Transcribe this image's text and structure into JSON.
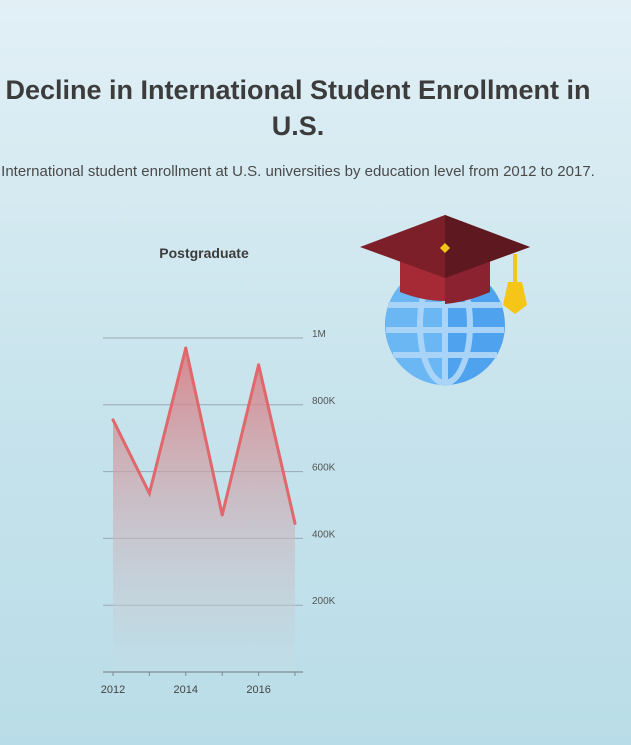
{
  "title": "Decline in International Student Enrollment in U.S.",
  "subtitle": "International student enrollment at U.S. universities by education level from 2012 to 2017.",
  "colors": {
    "line": "#e0676b",
    "fill_top": "#d9777c",
    "fill_bottom": "#c3dde6",
    "grid": "#9aa9b0",
    "cap": "#7d1f28",
    "cap_band": "#a52a36",
    "tassel": "#f5c518",
    "globe": "#5aaaf0"
  },
  "icons": [
    "graduation-cap-icon",
    "globe-icon"
  ],
  "chart_data": {
    "type": "area",
    "title": "Postgraduate",
    "x": [
      2012,
      2013,
      2014,
      2015,
      2016,
      2017
    ],
    "x_tick_labels": [
      "2012",
      "2014",
      "2016"
    ],
    "x_tick_values": [
      2012,
      2014,
      2016
    ],
    "y_tick_labels": [
      "200K",
      "400K",
      "600K",
      "800K",
      "1M"
    ],
    "y_tick_values": [
      200000,
      400000,
      600000,
      800000,
      1000000
    ],
    "ylim": [
      0,
      1000000
    ],
    "grid": true,
    "series": [
      {
        "values": [
          755000,
          535000,
          970000,
          470000,
          920000,
          445000
        ]
      }
    ]
  }
}
